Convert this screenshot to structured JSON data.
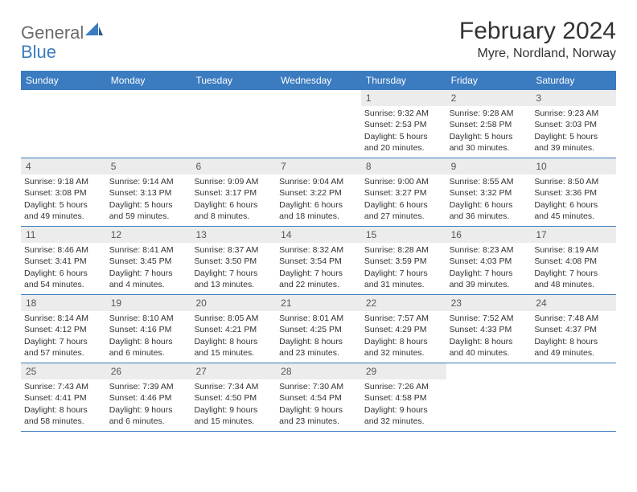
{
  "logo": {
    "text1": "General",
    "text2": "Blue"
  },
  "title": "February 2024",
  "location": "Myre, Nordland, Norway",
  "colors": {
    "header_bar": "#3b7bbf",
    "daynum_bg": "#ececec",
    "text": "#333333",
    "logo_gray": "#6b6b6b",
    "logo_blue": "#3b7bbf"
  },
  "weekdays": [
    "Sunday",
    "Monday",
    "Tuesday",
    "Wednesday",
    "Thursday",
    "Friday",
    "Saturday"
  ],
  "weeks": [
    [
      {
        "n": "",
        "sr": "",
        "ss": "",
        "dl1": "",
        "dl2": ""
      },
      {
        "n": "",
        "sr": "",
        "ss": "",
        "dl1": "",
        "dl2": ""
      },
      {
        "n": "",
        "sr": "",
        "ss": "",
        "dl1": "",
        "dl2": ""
      },
      {
        "n": "",
        "sr": "",
        "ss": "",
        "dl1": "",
        "dl2": ""
      },
      {
        "n": "1",
        "sr": "Sunrise: 9:32 AM",
        "ss": "Sunset: 2:53 PM",
        "dl1": "Daylight: 5 hours",
        "dl2": "and 20 minutes."
      },
      {
        "n": "2",
        "sr": "Sunrise: 9:28 AM",
        "ss": "Sunset: 2:58 PM",
        "dl1": "Daylight: 5 hours",
        "dl2": "and 30 minutes."
      },
      {
        "n": "3",
        "sr": "Sunrise: 9:23 AM",
        "ss": "Sunset: 3:03 PM",
        "dl1": "Daylight: 5 hours",
        "dl2": "and 39 minutes."
      }
    ],
    [
      {
        "n": "4",
        "sr": "Sunrise: 9:18 AM",
        "ss": "Sunset: 3:08 PM",
        "dl1": "Daylight: 5 hours",
        "dl2": "and 49 minutes."
      },
      {
        "n": "5",
        "sr": "Sunrise: 9:14 AM",
        "ss": "Sunset: 3:13 PM",
        "dl1": "Daylight: 5 hours",
        "dl2": "and 59 minutes."
      },
      {
        "n": "6",
        "sr": "Sunrise: 9:09 AM",
        "ss": "Sunset: 3:17 PM",
        "dl1": "Daylight: 6 hours",
        "dl2": "and 8 minutes."
      },
      {
        "n": "7",
        "sr": "Sunrise: 9:04 AM",
        "ss": "Sunset: 3:22 PM",
        "dl1": "Daylight: 6 hours",
        "dl2": "and 18 minutes."
      },
      {
        "n": "8",
        "sr": "Sunrise: 9:00 AM",
        "ss": "Sunset: 3:27 PM",
        "dl1": "Daylight: 6 hours",
        "dl2": "and 27 minutes."
      },
      {
        "n": "9",
        "sr": "Sunrise: 8:55 AM",
        "ss": "Sunset: 3:32 PM",
        "dl1": "Daylight: 6 hours",
        "dl2": "and 36 minutes."
      },
      {
        "n": "10",
        "sr": "Sunrise: 8:50 AM",
        "ss": "Sunset: 3:36 PM",
        "dl1": "Daylight: 6 hours",
        "dl2": "and 45 minutes."
      }
    ],
    [
      {
        "n": "11",
        "sr": "Sunrise: 8:46 AM",
        "ss": "Sunset: 3:41 PM",
        "dl1": "Daylight: 6 hours",
        "dl2": "and 54 minutes."
      },
      {
        "n": "12",
        "sr": "Sunrise: 8:41 AM",
        "ss": "Sunset: 3:45 PM",
        "dl1": "Daylight: 7 hours",
        "dl2": "and 4 minutes."
      },
      {
        "n": "13",
        "sr": "Sunrise: 8:37 AM",
        "ss": "Sunset: 3:50 PM",
        "dl1": "Daylight: 7 hours",
        "dl2": "and 13 minutes."
      },
      {
        "n": "14",
        "sr": "Sunrise: 8:32 AM",
        "ss": "Sunset: 3:54 PM",
        "dl1": "Daylight: 7 hours",
        "dl2": "and 22 minutes."
      },
      {
        "n": "15",
        "sr": "Sunrise: 8:28 AM",
        "ss": "Sunset: 3:59 PM",
        "dl1": "Daylight: 7 hours",
        "dl2": "and 31 minutes."
      },
      {
        "n": "16",
        "sr": "Sunrise: 8:23 AM",
        "ss": "Sunset: 4:03 PM",
        "dl1": "Daylight: 7 hours",
        "dl2": "and 39 minutes."
      },
      {
        "n": "17",
        "sr": "Sunrise: 8:19 AM",
        "ss": "Sunset: 4:08 PM",
        "dl1": "Daylight: 7 hours",
        "dl2": "and 48 minutes."
      }
    ],
    [
      {
        "n": "18",
        "sr": "Sunrise: 8:14 AM",
        "ss": "Sunset: 4:12 PM",
        "dl1": "Daylight: 7 hours",
        "dl2": "and 57 minutes."
      },
      {
        "n": "19",
        "sr": "Sunrise: 8:10 AM",
        "ss": "Sunset: 4:16 PM",
        "dl1": "Daylight: 8 hours",
        "dl2": "and 6 minutes."
      },
      {
        "n": "20",
        "sr": "Sunrise: 8:05 AM",
        "ss": "Sunset: 4:21 PM",
        "dl1": "Daylight: 8 hours",
        "dl2": "and 15 minutes."
      },
      {
        "n": "21",
        "sr": "Sunrise: 8:01 AM",
        "ss": "Sunset: 4:25 PM",
        "dl1": "Daylight: 8 hours",
        "dl2": "and 23 minutes."
      },
      {
        "n": "22",
        "sr": "Sunrise: 7:57 AM",
        "ss": "Sunset: 4:29 PM",
        "dl1": "Daylight: 8 hours",
        "dl2": "and 32 minutes."
      },
      {
        "n": "23",
        "sr": "Sunrise: 7:52 AM",
        "ss": "Sunset: 4:33 PM",
        "dl1": "Daylight: 8 hours",
        "dl2": "and 40 minutes."
      },
      {
        "n": "24",
        "sr": "Sunrise: 7:48 AM",
        "ss": "Sunset: 4:37 PM",
        "dl1": "Daylight: 8 hours",
        "dl2": "and 49 minutes."
      }
    ],
    [
      {
        "n": "25",
        "sr": "Sunrise: 7:43 AM",
        "ss": "Sunset: 4:41 PM",
        "dl1": "Daylight: 8 hours",
        "dl2": "and 58 minutes."
      },
      {
        "n": "26",
        "sr": "Sunrise: 7:39 AM",
        "ss": "Sunset: 4:46 PM",
        "dl1": "Daylight: 9 hours",
        "dl2": "and 6 minutes."
      },
      {
        "n": "27",
        "sr": "Sunrise: 7:34 AM",
        "ss": "Sunset: 4:50 PM",
        "dl1": "Daylight: 9 hours",
        "dl2": "and 15 minutes."
      },
      {
        "n": "28",
        "sr": "Sunrise: 7:30 AM",
        "ss": "Sunset: 4:54 PM",
        "dl1": "Daylight: 9 hours",
        "dl2": "and 23 minutes."
      },
      {
        "n": "29",
        "sr": "Sunrise: 7:26 AM",
        "ss": "Sunset: 4:58 PM",
        "dl1": "Daylight: 9 hours",
        "dl2": "and 32 minutes."
      },
      {
        "n": "",
        "sr": "",
        "ss": "",
        "dl1": "",
        "dl2": ""
      },
      {
        "n": "",
        "sr": "",
        "ss": "",
        "dl1": "",
        "dl2": ""
      }
    ]
  ]
}
